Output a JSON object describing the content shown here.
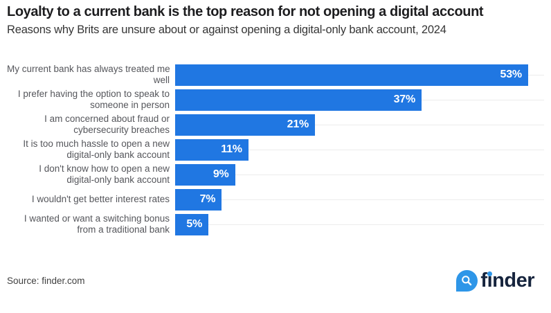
{
  "header": {
    "title": "Loyalty to a current bank is the top reason for not opening a digital account",
    "subtitle": "Reasons why Brits are unsure about or against opening a digital-only bank account, 2024"
  },
  "chart_data": {
    "type": "bar",
    "orientation": "horizontal",
    "title": "Loyalty to a current bank is the top reason for not opening a digital account",
    "subtitle": "Reasons why Brits are unsure about or against opening a digital-only bank account, 2024",
    "categories": [
      "My current bank has always treated me well",
      "I prefer having the option to speak to someone in person",
      "I am concerned about fraud or cybersecurity breaches",
      "It is too much hassle to open a new digital-only bank account",
      "I don't know how to open a new digital-only bank account",
      "I wouldn't get better interest rates",
      "I wanted or want a switching bonus from a traditional bank"
    ],
    "label_lines": [
      [
        "My current bank has always treated me",
        "well"
      ],
      [
        "I prefer having the option to speak to",
        "someone in person"
      ],
      [
        "I am concerned about fraud or",
        "cybersecurity breaches"
      ],
      [
        "It is too much hassle to open a new",
        "digital-only bank account"
      ],
      [
        "I don't know how to open a new",
        "digital-only bank account"
      ],
      [
        "I wouldn't get better interest rates"
      ],
      [
        "I wanted or want a switching bonus",
        "from a traditional bank"
      ]
    ],
    "values": [
      53,
      37,
      21,
      11,
      9,
      7,
      5
    ],
    "value_labels": [
      "53%",
      "37%",
      "21%",
      "11%",
      "9%",
      "7%",
      "5%"
    ],
    "value_suffix": "%",
    "xlim": [
      0,
      55.4
    ],
    "grid": "horizontal-per-row",
    "legend": "none",
    "bar_color": "#2077E2",
    "label_color": "#55565B",
    "gridline_color": "#ECECEC"
  },
  "footer": {
    "source": "Source: finder.com",
    "logo": {
      "brand": "finder",
      "icon": "search-icon",
      "parts": [
        "f",
        "i",
        "nder"
      ],
      "navy": "#16243D",
      "blue": "#2E96E8"
    }
  }
}
